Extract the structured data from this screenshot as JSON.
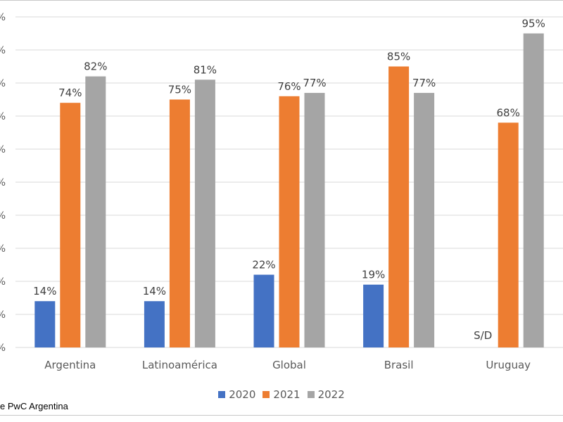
{
  "chart_data": {
    "type": "bar",
    "categories": [
      "Argentina",
      "Latinoamérica",
      "Global",
      "Brasil",
      "Uruguay"
    ],
    "series": [
      {
        "name": "2020",
        "color": "#4472C4",
        "values": [
          14,
          14,
          22,
          19,
          null
        ]
      },
      {
        "name": "2021",
        "color": "#ED7D31",
        "values": [
          74,
          75,
          76,
          85,
          68
        ]
      },
      {
        "name": "2022",
        "color": "#A5A5A5",
        "values": [
          82,
          81,
          77,
          77,
          95
        ]
      }
    ],
    "data_labels": {
      "2020": [
        "14%",
        "14%",
        "22%",
        "19%",
        "S/D"
      ],
      "2021": [
        "74%",
        "75%",
        "76%",
        "85%",
        "68%"
      ],
      "2022": [
        "82%",
        "81%",
        "77%",
        "77%",
        "95%"
      ]
    },
    "ylim": [
      0,
      100
    ],
    "ytick_step": 10,
    "ytick_suffix": "%",
    "grid": true,
    "legend_position": "bottom",
    "source_text": "e PwC Argentina"
  }
}
